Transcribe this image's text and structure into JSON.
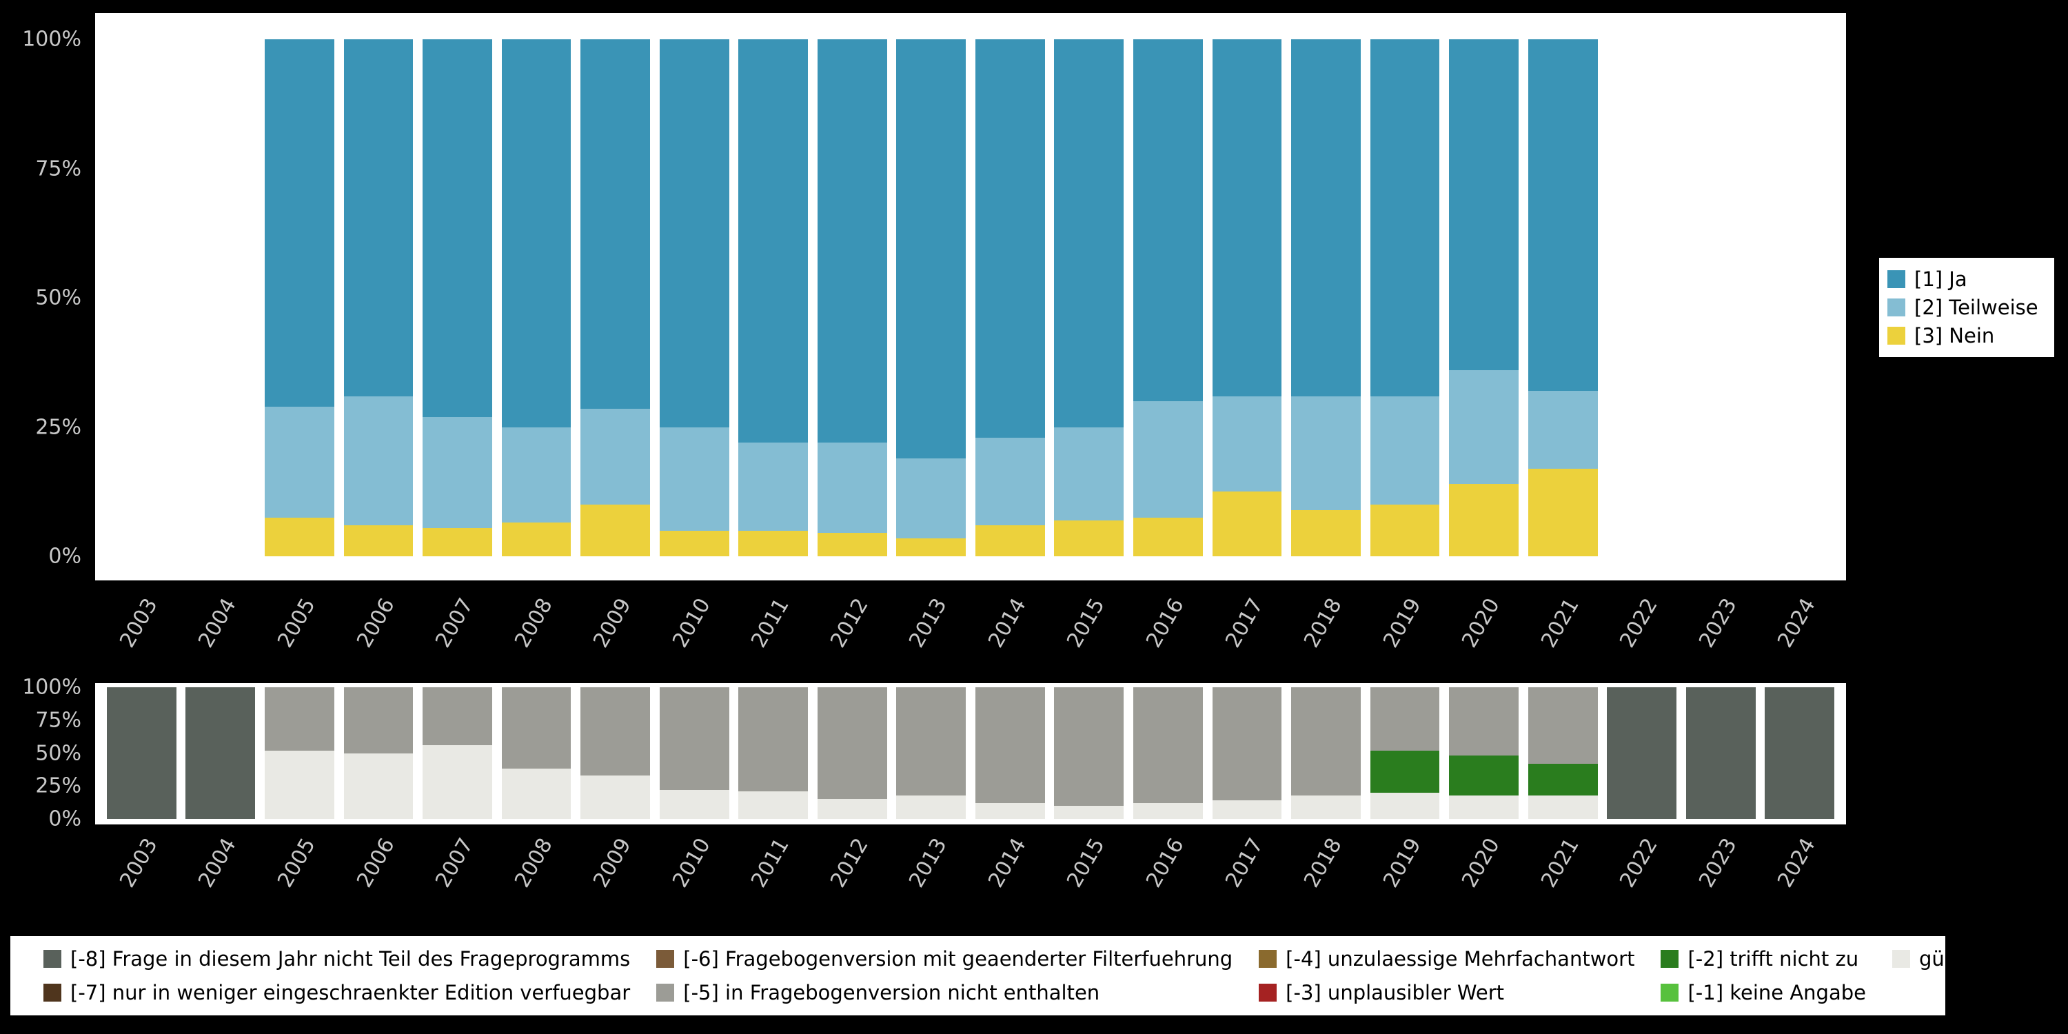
{
  "colors": {
    "ja": "#3a94b6",
    "teilweise": "#84bdd3",
    "nein": "#ecd13c",
    "m8": "#59615b",
    "m7": "#4f351d",
    "m6": "#7b5b39",
    "m5": "#9c9c96",
    "m4": "#8a6a2e",
    "m3": "#a52222",
    "m2": "#2a7d1e",
    "m1": "#57c13d",
    "valid": "#e9e9e4"
  },
  "axes": {
    "yticks": [
      {
        "label": "0%",
        "value": 0
      },
      {
        "label": "25%",
        "value": 25
      },
      {
        "label": "50%",
        "value": 50
      },
      {
        "label": "75%",
        "value": 75
      },
      {
        "label": "100%",
        "value": 100
      }
    ]
  },
  "legend_top": {
    "items": [
      {
        "label": "[1] Ja",
        "color_key": "ja"
      },
      {
        "label": "[2] Teilweise",
        "color_key": "teilweise"
      },
      {
        "label": "[3] Nein",
        "color_key": "nein"
      }
    ]
  },
  "legend_bottom": {
    "items": [
      {
        "label": "[-8] Frage in diesem Jahr nicht Teil des Frageprogramms",
        "color_key": "m8"
      },
      {
        "label": "[-7] nur in weniger eingeschraenkter Edition verfuegbar",
        "color_key": "m7"
      },
      {
        "label": "[-6] Fragebogenversion mit geaenderter Filterfuehrung",
        "color_key": "m6"
      },
      {
        "label": "[-5] in Fragebogenversion nicht enthalten",
        "color_key": "m5"
      },
      {
        "label": "[-4] unzulaessige Mehrfachantwort",
        "color_key": "m4"
      },
      {
        "label": "[-3] unplausibler Wert",
        "color_key": "m3"
      },
      {
        "label": "[-2] trifft nicht zu",
        "color_key": "m2"
      },
      {
        "label": "[-1] keine Angabe",
        "color_key": "m1"
      },
      {
        "label": "gültige Observationen",
        "color_key": "valid"
      }
    ]
  },
  "chart_data": [
    {
      "type": "bar",
      "stacked": true,
      "title": "",
      "xlabel": "",
      "ylabel": "",
      "ylim": [
        0,
        100
      ],
      "categories": [
        "2003",
        "2004",
        "2005",
        "2006",
        "2007",
        "2008",
        "2009",
        "2010",
        "2011",
        "2012",
        "2013",
        "2014",
        "2015",
        "2016",
        "2017",
        "2018",
        "2019",
        "2020",
        "2021",
        "2022",
        "2023",
        "2024"
      ],
      "series": [
        {
          "name": "[3] Nein",
          "color_key": "nein",
          "values": [
            0,
            0,
            7.5,
            6,
            5.5,
            6.5,
            10,
            5,
            5,
            4.5,
            3.5,
            6,
            7,
            7.5,
            12.5,
            9,
            10,
            14,
            17,
            0,
            0,
            0
          ]
        },
        {
          "name": "[2] Teilweise",
          "color_key": "teilweise",
          "values": [
            0,
            0,
            21.5,
            25,
            21.5,
            18.5,
            18.5,
            20,
            17,
            17.5,
            15.5,
            17,
            18,
            22.5,
            18.5,
            22,
            21,
            22,
            15,
            0,
            0,
            0
          ]
        },
        {
          "name": "[1] Ja",
          "color_key": "ja",
          "values": [
            0,
            0,
            71,
            69,
            73,
            75,
            71.5,
            75,
            78,
            78,
            81,
            77,
            75,
            70,
            69,
            69,
            69,
            64,
            68,
            0,
            0,
            0
          ]
        }
      ]
    },
    {
      "type": "bar",
      "stacked": true,
      "title": "",
      "xlabel": "",
      "ylabel": "",
      "ylim": [
        0,
        100
      ],
      "categories": [
        "2003",
        "2004",
        "2005",
        "2006",
        "2007",
        "2008",
        "2009",
        "2010",
        "2011",
        "2012",
        "2013",
        "2014",
        "2015",
        "2016",
        "2017",
        "2018",
        "2019",
        "2020",
        "2021",
        "2022",
        "2023",
        "2024"
      ],
      "series": [
        {
          "name": "gültige Observationen",
          "color_key": "valid",
          "values": [
            0,
            0,
            52,
            50,
            56,
            38,
            33,
            22,
            21,
            15,
            18,
            12,
            10,
            12,
            14,
            18,
            20,
            18,
            18,
            0,
            0,
            0
          ]
        },
        {
          "name": "[-2] trifft nicht zu",
          "color_key": "m2",
          "values": [
            0,
            0,
            0,
            0,
            0,
            0,
            0,
            0,
            0,
            0,
            0,
            0,
            0,
            0,
            0,
            0,
            32,
            30,
            24,
            0,
            0,
            0
          ]
        },
        {
          "name": "[-5] in Fragebogenversion nicht enthalten",
          "color_key": "m5",
          "values": [
            0,
            0,
            48,
            50,
            44,
            62,
            67,
            78,
            79,
            85,
            82,
            88,
            90,
            88,
            86,
            82,
            48,
            52,
            58,
            0,
            0,
            0
          ]
        },
        {
          "name": "[-8] Frage in diesem Jahr nicht Teil des Frageprogramms",
          "color_key": "m8",
          "values": [
            100,
            100,
            0,
            0,
            0,
            0,
            0,
            0,
            0,
            0,
            0,
            0,
            0,
            0,
            0,
            0,
            0,
            0,
            0,
            100,
            100,
            100
          ]
        }
      ]
    }
  ]
}
